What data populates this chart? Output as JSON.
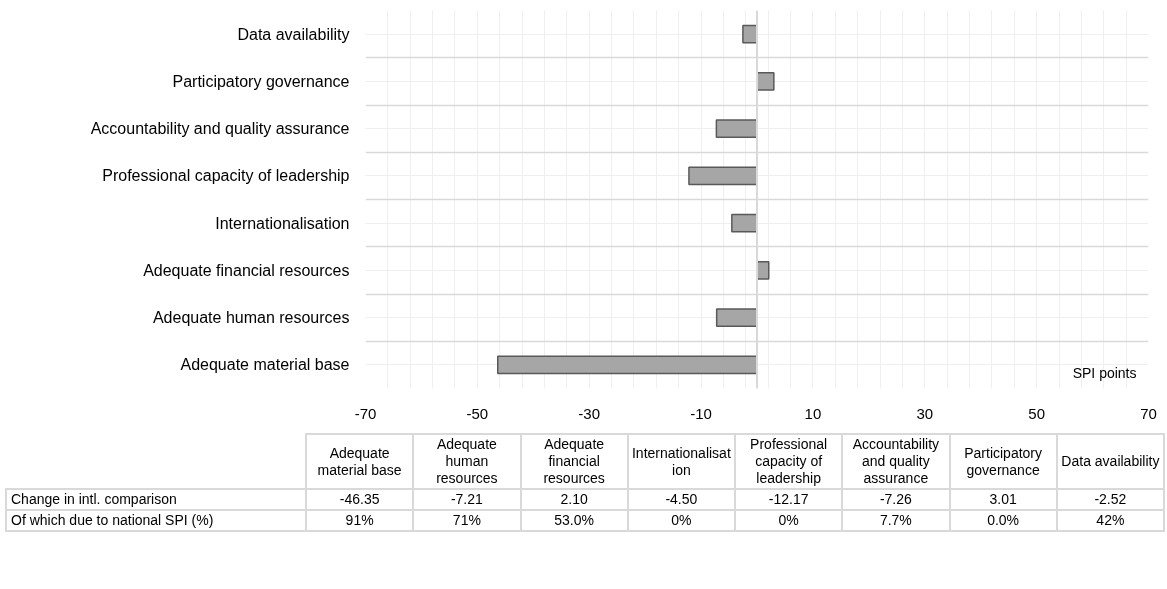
{
  "chart_data": {
    "type": "bar",
    "orientation": "horizontal",
    "categories": [
      "Data availability",
      "Participatory governance",
      "Accountability and quality assurance",
      "Professional capacity of leadership",
      "Internationalisation",
      "Adequate financial resources",
      "Adequate human resources",
      "Adequate material base"
    ],
    "values": [
      -2.52,
      3.01,
      -7.26,
      -12.17,
      -4.5,
      2.1,
      -7.21,
      -46.35
    ],
    "color": "#a6a6a6",
    "xlim": [
      -70,
      70
    ],
    "xticks": [
      -70,
      -50,
      -30,
      -10,
      10,
      30,
      50,
      70
    ],
    "grid": true,
    "annotations": [
      "SPI points",
      "Change in intl. comparison",
      "Of which due to national SPI (%)",
      "-46.35",
      "-7.21",
      "2.10",
      "-4.50",
      "-12.17",
      "-7.26",
      "3.01",
      "-2.52",
      "91%",
      "71%",
      "53.0%",
      "0%",
      "0%",
      "7.7%",
      "0.0%",
      "42%"
    ]
  }
}
